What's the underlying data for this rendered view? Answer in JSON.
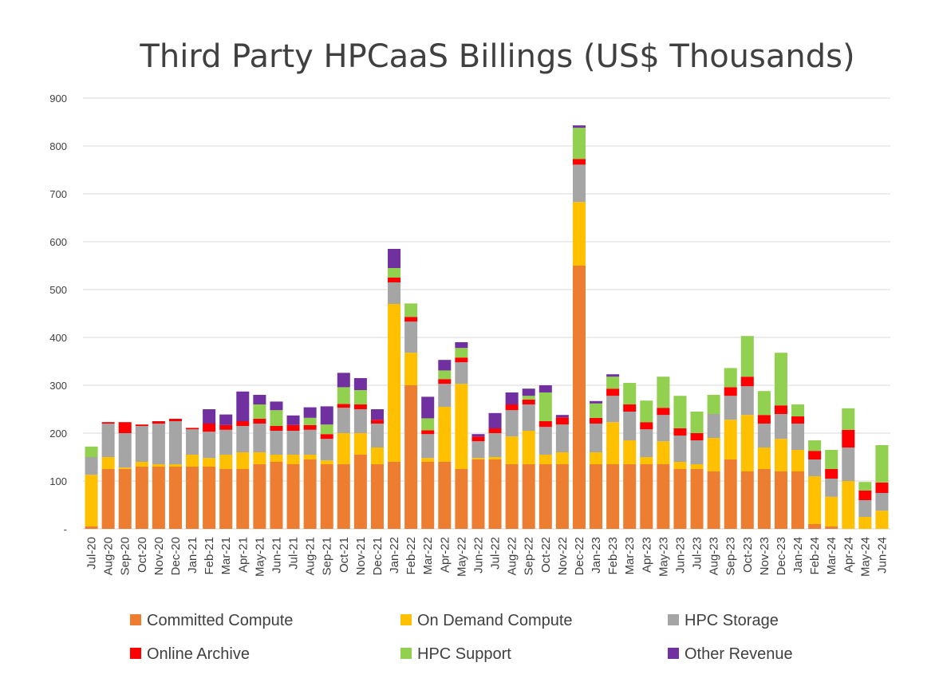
{
  "chart_data": {
    "type": "bar",
    "stacked": true,
    "title": "Third Party HPCaaS Billings (US$ Thousands)",
    "xlabel": "",
    "ylabel": "",
    "ylim": [
      0,
      900
    ],
    "yticks": [
      "-",
      "100",
      "200",
      "300",
      "400",
      "500",
      "600",
      "700",
      "800",
      "900"
    ],
    "grid": true,
    "legend_position": "bottom",
    "categories": [
      "Jul-20",
      "Aug-20",
      "Sep-20",
      "Oct-20",
      "Nov-20",
      "Dec-20",
      "Jan-21",
      "Feb-21",
      "Mar-21",
      "Apr-21",
      "May-21",
      "Jun-21",
      "Jul-21",
      "Aug-21",
      "Sep-21",
      "Oct-21",
      "Nov-21",
      "Dec-21",
      "Jan-22",
      "Feb-22",
      "Mar-22",
      "Apr-22",
      "May-22",
      "Jun-22",
      "Jul-22",
      "Aug-22",
      "Sep-22",
      "Oct-22",
      "Nov-22",
      "Dec-22",
      "Jan-23",
      "Feb-23",
      "Mar-23",
      "Apr-23",
      "May-23",
      "Jun-23",
      "Jul-23",
      "Aug-23",
      "Sep-23",
      "Oct-23",
      "Nov-23",
      "Dec-23",
      "Jan-24",
      "Feb-24",
      "Mar-24",
      "Apr-24",
      "May-24",
      "Jun-24"
    ],
    "series": [
      {
        "name": "Committed Compute",
        "color": "#ED7D31",
        "values": [
          5,
          125,
          125,
          130,
          130,
          130,
          130,
          130,
          125,
          125,
          135,
          140,
          135,
          145,
          135,
          135,
          155,
          135,
          140,
          300,
          140,
          140,
          125,
          145,
          145,
          135,
          135,
          135,
          135,
          550,
          135,
          135,
          135,
          135,
          135,
          125,
          125,
          120,
          145,
          120,
          125,
          120,
          120,
          10,
          5,
          0,
          0,
          0
        ]
      },
      {
        "name": "On Demand Compute",
        "color": "#FFC000",
        "values": [
          108,
          25,
          3,
          10,
          5,
          5,
          25,
          18,
          30,
          35,
          25,
          15,
          20,
          10,
          8,
          65,
          45,
          35,
          330,
          68,
          8,
          115,
          178,
          3,
          5,
          58,
          70,
          20,
          25,
          133,
          25,
          88,
          50,
          15,
          48,
          15,
          10,
          70,
          83,
          118,
          45,
          68,
          45,
          100,
          62,
          100,
          25,
          38
        ]
      },
      {
        "name": "HPC Storage",
        "color": "#A5A5A5",
        "values": [
          37,
          70,
          72,
          75,
          85,
          90,
          53,
          55,
          52,
          55,
          60,
          50,
          50,
          52,
          45,
          53,
          50,
          50,
          45,
          65,
          50,
          48,
          45,
          35,
          50,
          55,
          55,
          58,
          58,
          78,
          60,
          55,
          60,
          58,
          55,
          55,
          50,
          50,
          50,
          60,
          50,
          52,
          55,
          35,
          38,
          70,
          35,
          37
        ]
      },
      {
        "name": "Online Archive",
        "color": "#FF0000",
        "values": [
          0,
          3,
          23,
          3,
          5,
          5,
          3,
          17,
          10,
          10,
          10,
          10,
          12,
          10,
          10,
          8,
          10,
          8,
          10,
          10,
          8,
          10,
          10,
          10,
          10,
          12,
          10,
          12,
          15,
          12,
          12,
          15,
          15,
          15,
          15,
          15,
          15,
          0,
          18,
          20,
          18,
          18,
          15,
          18,
          20,
          37,
          20,
          22
        ]
      },
      {
        "name": "HPC Support",
        "color": "#92D050",
        "values": [
          22,
          0,
          0,
          0,
          0,
          0,
          0,
          0,
          0,
          0,
          30,
          33,
          0,
          15,
          20,
          35,
          30,
          0,
          20,
          28,
          25,
          18,
          20,
          0,
          0,
          0,
          8,
          60,
          0,
          65,
          30,
          25,
          45,
          45,
          65,
          68,
          45,
          40,
          40,
          85,
          50,
          110,
          25,
          22,
          40,
          45,
          18,
          78
        ]
      },
      {
        "name": "Other Revenue",
        "color": "#7030A0",
        "values": [
          0,
          0,
          0,
          0,
          0,
          0,
          0,
          30,
          22,
          62,
          20,
          18,
          20,
          22,
          38,
          30,
          25,
          22,
          40,
          0,
          45,
          22,
          12,
          5,
          32,
          25,
          15,
          15,
          5,
          5,
          5,
          5,
          0,
          0,
          0,
          0,
          0,
          0,
          0,
          0,
          0,
          0,
          0,
          0,
          0,
          0,
          0,
          0
        ]
      }
    ]
  }
}
